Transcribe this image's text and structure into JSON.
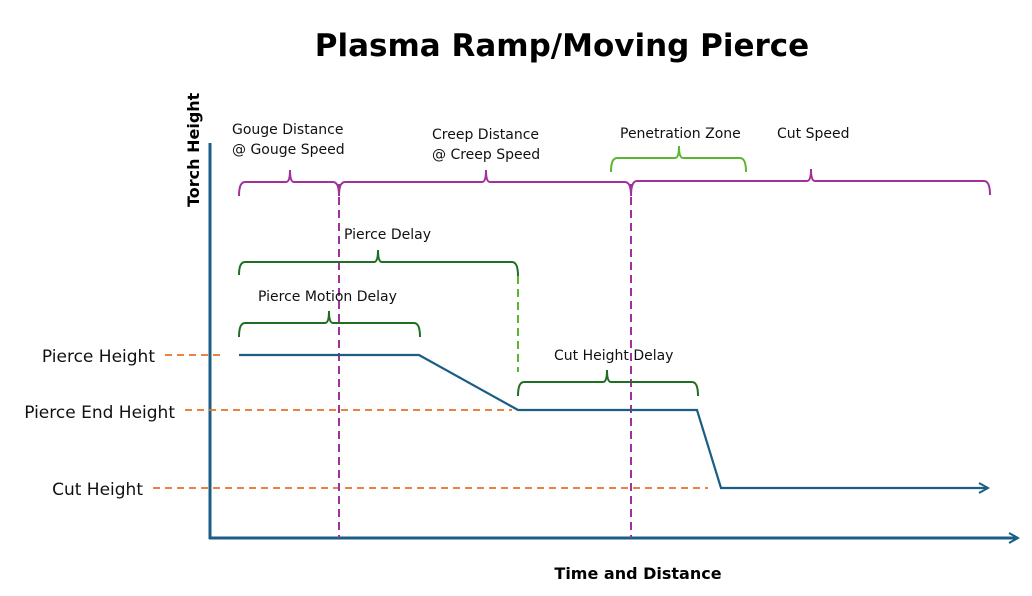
{
  "title": "Plasma Ramp/Moving Pierce",
  "axes": {
    "y_label": "Torch Height",
    "x_label": "Time and Distance"
  },
  "height_levels": [
    "Pierce Height",
    "Pierce End Height",
    "Cut Height"
  ],
  "segments": {
    "gouge": [
      "Gouge Distance",
      "@ Gouge Speed"
    ],
    "creep": [
      "Creep Distance",
      "@ Creep Speed"
    ],
    "penetration": "Penetration Zone",
    "cut_speed": "Cut Speed",
    "pierce_delay": "Pierce Delay",
    "pierce_motion_delay": "Pierce Motion Delay",
    "cut_height_delay": "Cut Height Delay"
  },
  "colors": {
    "profile": "#1b5e84",
    "reference": "#e8712b",
    "motion": "#a1309b",
    "delay": "#1f6e24",
    "zone": "#5bb62f"
  }
}
